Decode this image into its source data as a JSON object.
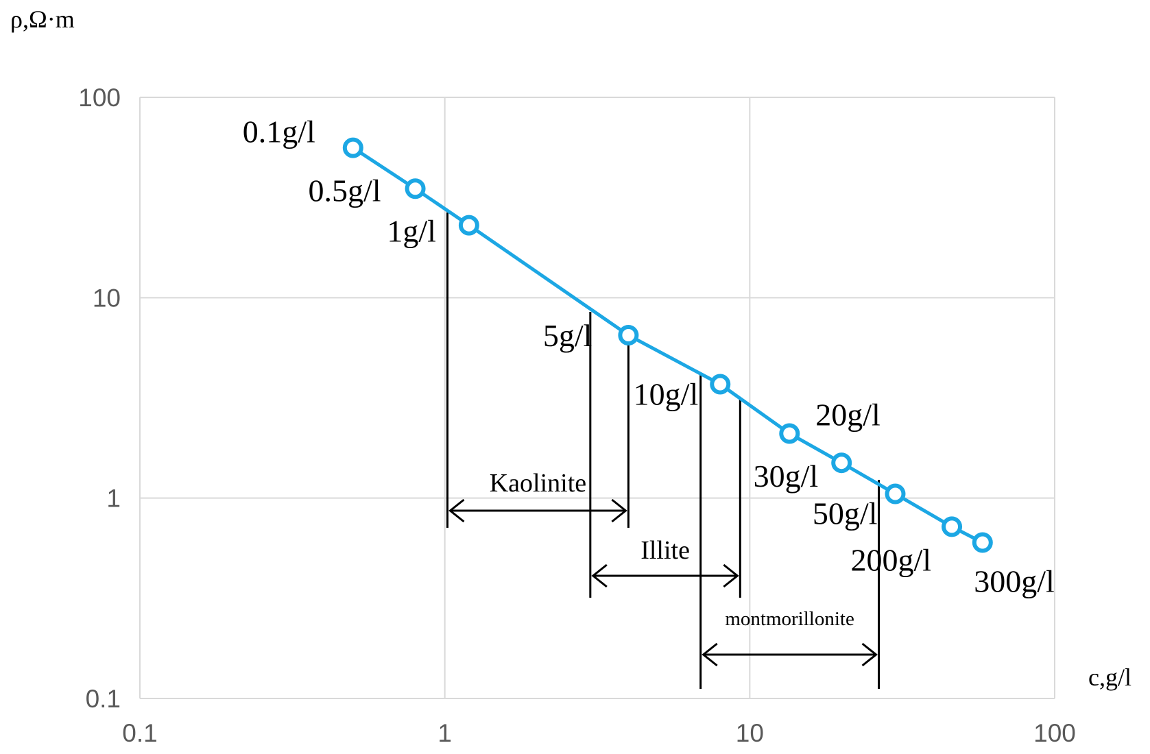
{
  "chart_data": {
    "type": "line",
    "xscale": "log",
    "yscale": "log",
    "xlim": [
      0.1,
      100
    ],
    "ylim": [
      0.1,
      100
    ],
    "grid": true,
    "xlabel": "c,g/l",
    "ylabel": "ρ,Ω·m",
    "x_ticks": [
      "0.1",
      "1",
      "10",
      "100"
    ],
    "y_ticks": [
      "0.1",
      "1",
      "10",
      "100"
    ],
    "line_color": "#1CA7E4",
    "series": [
      {
        "x": [
          0.5,
          0.8,
          1.2,
          4,
          8,
          13.5,
          20,
          30,
          46,
          58
        ],
        "y": [
          56,
          35,
          23,
          6.5,
          3.7,
          2.1,
          1.5,
          1.05,
          0.72,
          0.6
        ]
      }
    ],
    "point_labels": [
      "0.1g/l",
      "0.5g/l",
      "1g/l",
      "5g/l",
      "10g/l",
      "20g/l",
      "30g/l",
      "50g/l",
      "200g/l",
      "300g/l"
    ],
    "ranges": [
      {
        "name": "Kaolinite",
        "x_from": 1.02,
        "x_to": 4.0
      },
      {
        "name": "Illite",
        "x_from": 3.0,
        "x_to": 9.3
      },
      {
        "name": "montmorillonite",
        "x_from": 6.9,
        "x_to": 26.5
      }
    ]
  }
}
